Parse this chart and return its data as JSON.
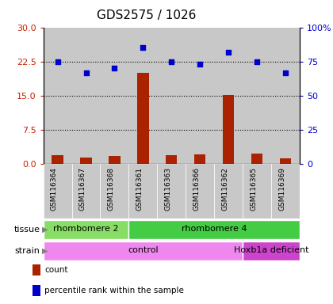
{
  "title": "GDS2575 / 1026",
  "samples": [
    "GSM116364",
    "GSM116367",
    "GSM116368",
    "GSM116361",
    "GSM116363",
    "GSM116366",
    "GSM116362",
    "GSM116365",
    "GSM116369"
  ],
  "counts": [
    2.0,
    1.5,
    1.8,
    20.0,
    1.9,
    2.1,
    15.2,
    2.4,
    1.2
  ],
  "percentile_ranks": [
    75,
    67,
    70,
    85,
    75,
    73,
    82,
    75,
    67
  ],
  "left_ylim": [
    0,
    30
  ],
  "left_yticks": [
    0,
    7.5,
    15,
    22.5,
    30
  ],
  "right_ylim": [
    0,
    100
  ],
  "right_yticks": [
    0,
    25,
    50,
    75,
    100
  ],
  "right_yticklabels": [
    "0",
    "25",
    "50",
    "75",
    "100%"
  ],
  "bar_color": "#aa2200",
  "dot_color": "#0000cc",
  "left_tick_color": "#cc2200",
  "right_tick_color": "#0000cc",
  "bg_color": "white",
  "col_bg": "#c8c8c8",
  "tissue_groups": [
    {
      "label": "rhombomere 2",
      "start": 0,
      "end": 3,
      "color": "#88dd66"
    },
    {
      "label": "rhombomere 4",
      "start": 3,
      "end": 9,
      "color": "#44cc44"
    }
  ],
  "strain_groups": [
    {
      "label": "control",
      "start": 0,
      "end": 7,
      "color": "#ee88ee"
    },
    {
      "label": "Hoxb1a deficient",
      "start": 7,
      "end": 9,
      "color": "#cc44cc"
    }
  ],
  "legend_items": [
    {
      "color": "#aa2200",
      "label": "count"
    },
    {
      "color": "#0000cc",
      "label": "percentile rank within the sample"
    }
  ],
  "title_fontsize": 11,
  "tick_fontsize": 8,
  "label_fontsize": 8,
  "annot_fontsize": 8
}
